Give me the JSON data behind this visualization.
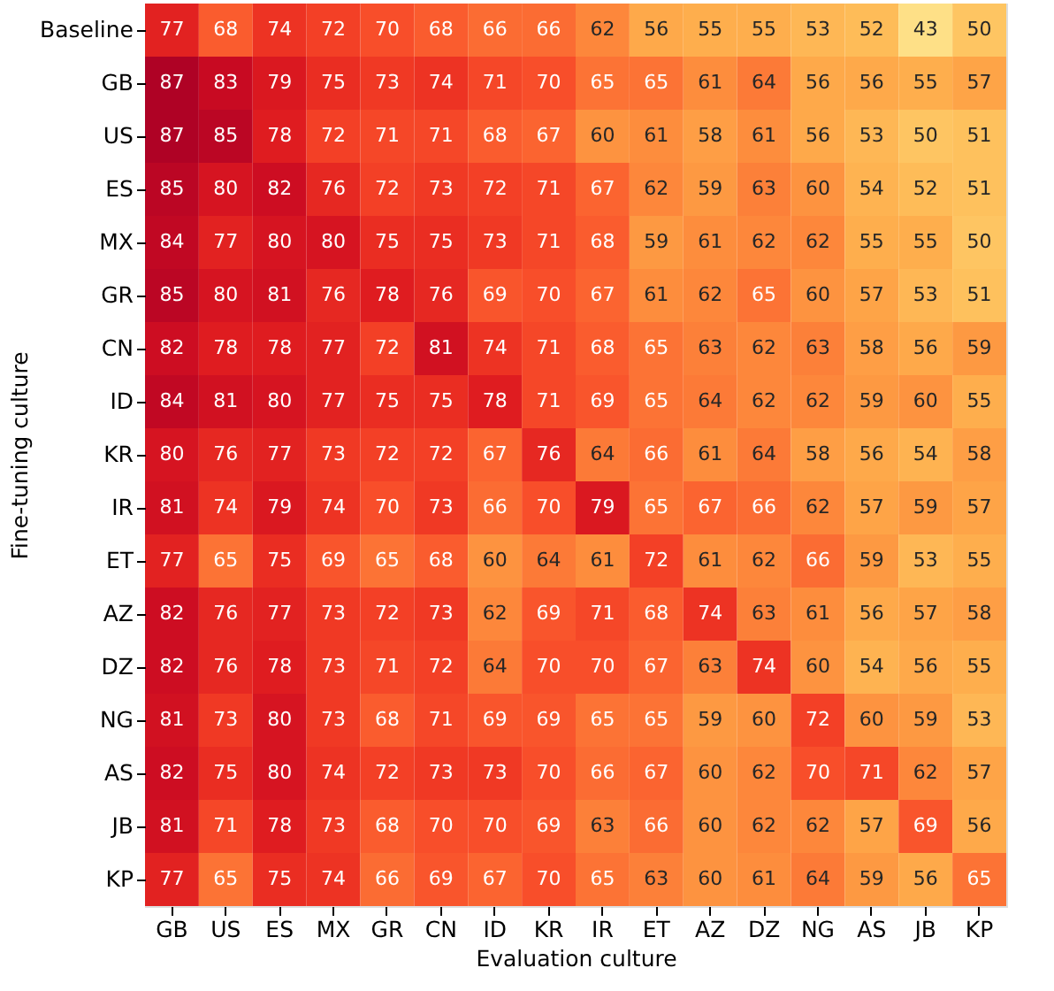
{
  "chart_data": {
    "type": "heatmap",
    "xlabel": "Evaluation culture",
    "ylabel": "Fine-tuning culture",
    "data_labels": true,
    "legend": false,
    "categories": [
      "GB",
      "US",
      "ES",
      "MX",
      "GR",
      "CN",
      "ID",
      "KR",
      "IR",
      "ET",
      "AZ",
      "DZ",
      "NG",
      "AS",
      "JB",
      "KP"
    ],
    "y_categories": [
      "Baseline",
      "GB",
      "US",
      "ES",
      "MX",
      "GR",
      "CN",
      "ID",
      "KR",
      "IR",
      "ET",
      "AZ",
      "DZ",
      "NG",
      "AS",
      "JB",
      "KP"
    ],
    "cells": [
      [
        77,
        68,
        74,
        72,
        70,
        68,
        66,
        66,
        62,
        56,
        55,
        55,
        53,
        52,
        43,
        50
      ],
      [
        87,
        83,
        79,
        75,
        73,
        74,
        71,
        70,
        65,
        65,
        61,
        64,
        56,
        56,
        55,
        57
      ],
      [
        87,
        85,
        78,
        72,
        71,
        71,
        68,
        67,
        60,
        61,
        58,
        61,
        56,
        53,
        50,
        51
      ],
      [
        85,
        80,
        82,
        76,
        72,
        73,
        72,
        71,
        67,
        62,
        59,
        63,
        60,
        54,
        52,
        51
      ],
      [
        84,
        77,
        80,
        80,
        75,
        75,
        73,
        71,
        68,
        59,
        61,
        62,
        62,
        55,
        55,
        50
      ],
      [
        85,
        80,
        81,
        76,
        78,
        76,
        69,
        70,
        67,
        61,
        62,
        65,
        60,
        57,
        53,
        51
      ],
      [
        82,
        78,
        78,
        77,
        72,
        81,
        74,
        71,
        68,
        65,
        63,
        62,
        63,
        58,
        56,
        59
      ],
      [
        84,
        81,
        80,
        77,
        75,
        75,
        78,
        71,
        69,
        65,
        64,
        62,
        62,
        59,
        60,
        55
      ],
      [
        80,
        76,
        77,
        73,
        72,
        72,
        67,
        76,
        64,
        66,
        61,
        64,
        58,
        56,
        54,
        58
      ],
      [
        81,
        74,
        79,
        74,
        70,
        73,
        66,
        70,
        79,
        65,
        67,
        66,
        62,
        57,
        59,
        57
      ],
      [
        77,
        65,
        75,
        69,
        65,
        68,
        60,
        64,
        61,
        72,
        61,
        62,
        66,
        59,
        53,
        55
      ],
      [
        82,
        76,
        77,
        73,
        72,
        73,
        62,
        69,
        71,
        68,
        74,
        63,
        61,
        56,
        57,
        58
      ],
      [
        82,
        76,
        78,
        73,
        71,
        72,
        64,
        70,
        70,
        67,
        63,
        74,
        60,
        54,
        56,
        55
      ],
      [
        81,
        73,
        80,
        73,
        68,
        71,
        69,
        69,
        65,
        65,
        59,
        60,
        72,
        60,
        59,
        53
      ],
      [
        82,
        75,
        80,
        74,
        72,
        73,
        73,
        70,
        66,
        67,
        60,
        62,
        70,
        71,
        62,
        57
      ],
      [
        81,
        71,
        78,
        73,
        68,
        70,
        70,
        69,
        63,
        66,
        60,
        62,
        62,
        57,
        69,
        56
      ],
      [
        77,
        65,
        75,
        74,
        66,
        69,
        67,
        70,
        65,
        63,
        60,
        61,
        64,
        59,
        56,
        65
      ]
    ]
  }
}
